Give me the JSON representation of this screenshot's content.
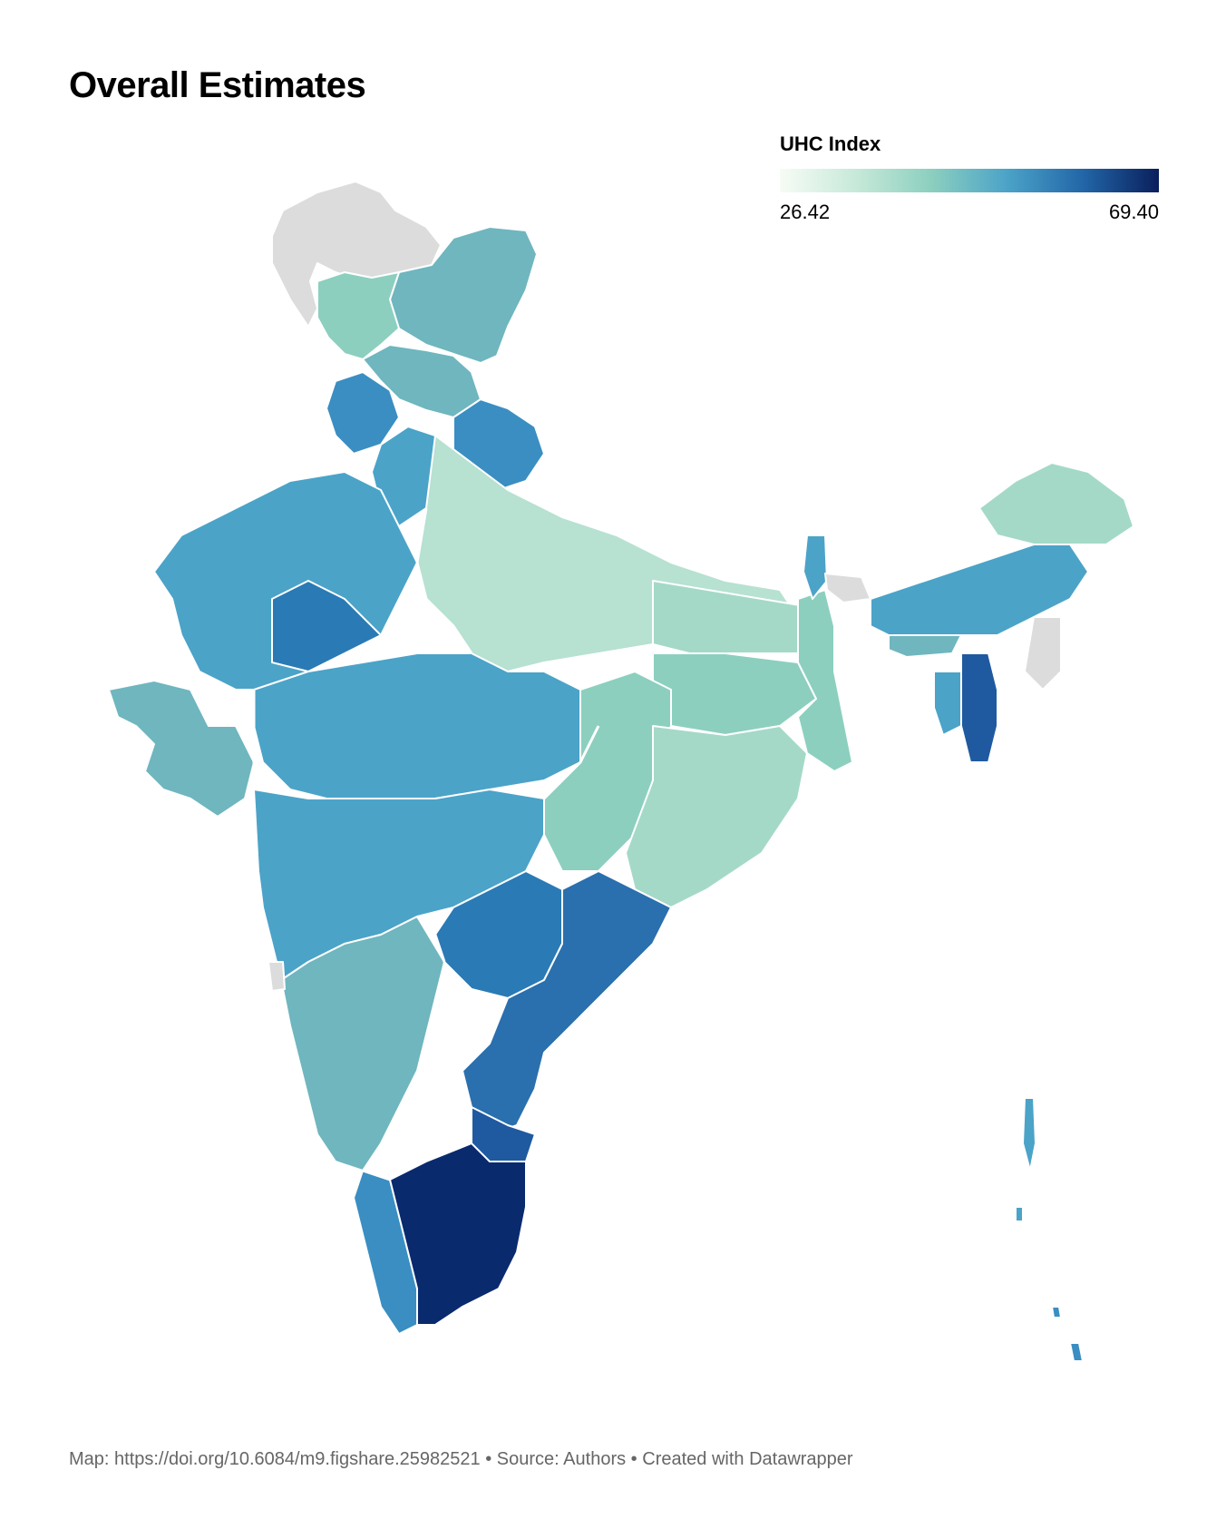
{
  "title": "Overall Estimates",
  "legend": {
    "title": "UHC Index",
    "min_label": "26.42",
    "max_label": "69.40",
    "min_value": 26.42,
    "max_value": 69.4,
    "color_stops": [
      "#f7fcf5",
      "#c7e9d9",
      "#8ccfbf",
      "#4ba3c8",
      "#2266a8",
      "#0a1f5c"
    ]
  },
  "map": {
    "type": "choropleth",
    "no_data_color": "#dcdcdc",
    "border_color": "#ffffff"
  },
  "footer": {
    "map_credit": "Map: https://doi.org/10.6084/m9.figshare.25982521",
    "separator": "•",
    "source": "Source: Authors",
    "created_with": "Created with Datawrapper"
  }
}
